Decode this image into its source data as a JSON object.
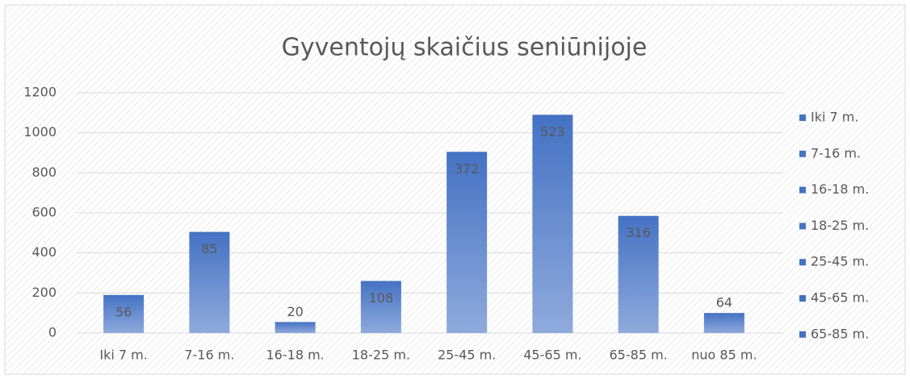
{
  "chart_data": {
    "type": "bar",
    "title": "Gyventojų skaičius seniūnijoje",
    "categories": [
      "Iki 7 m.",
      "7-16 m.",
      "16-18 m.",
      "18-25 m.",
      "25-45 m.",
      "45-65 m.",
      "65-85 m.",
      "nuo 85 m."
    ],
    "values": [
      190,
      505,
      55,
      260,
      905,
      1090,
      585,
      100
    ],
    "data_labels": [
      56,
      85,
      20,
      108,
      372,
      523,
      316,
      64
    ],
    "color": "#4472c4",
    "ylim": [
      0,
      1200
    ],
    "yticks": [
      0,
      200,
      400,
      600,
      800,
      1000,
      1200
    ],
    "grid": true,
    "legend": "right"
  }
}
